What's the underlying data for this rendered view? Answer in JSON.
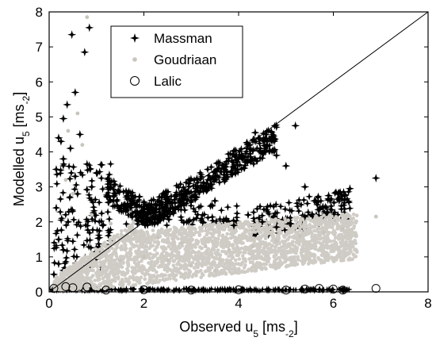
{
  "chart_data": {
    "type": "scatter",
    "title": "",
    "xlabel": {
      "main": "Observed u",
      "sub": "5",
      "unit_open": " [ms",
      "unit_sub": "-2",
      "unit_close": "]"
    },
    "ylabel": {
      "main": "Modelled u",
      "sub": "5",
      "unit_open": " [ms",
      "unit_sub": "-2",
      "unit_close": "]"
    },
    "xlim": [
      0,
      8
    ],
    "ylim": [
      0,
      8
    ],
    "xticks": [
      "0",
      "2",
      "4",
      "6",
      "8"
    ],
    "yticks": [
      "0",
      "1",
      "2",
      "3",
      "4",
      "5",
      "6",
      "7",
      "8"
    ],
    "grid": false,
    "legend_position": "top-left",
    "reference_line": {
      "x": [
        0,
        8
      ],
      "y": [
        0,
        8
      ]
    },
    "series": [
      {
        "name": "Massman",
        "marker": "star",
        "color": "#000000",
        "points": [
          [
            0.48,
            7.35
          ],
          [
            0.75,
            6.85
          ],
          [
            0.85,
            7.55
          ],
          [
            0.55,
            5.7
          ],
          [
            0.38,
            5.35
          ],
          [
            0.3,
            4.95
          ],
          [
            0.2,
            4.4
          ],
          [
            0.25,
            4.3
          ],
          [
            0.45,
            4.1
          ],
          [
            0.65,
            4.5
          ],
          [
            0.15,
            3.5
          ],
          [
            0.3,
            3.8
          ],
          [
            0.55,
            3.3
          ],
          [
            0.8,
            3.65
          ],
          [
            1.0,
            3.4
          ],
          [
            1.3,
            3.0
          ],
          [
            1.6,
            2.5
          ],
          [
            1.9,
            2.2
          ],
          [
            2.2,
            2.3
          ],
          [
            2.5,
            2.55
          ],
          [
            2.8,
            2.75
          ],
          [
            3.1,
            2.95
          ],
          [
            3.4,
            3.2
          ],
          [
            3.7,
            3.5
          ],
          [
            4.0,
            3.8
          ],
          [
            4.2,
            4.2
          ],
          [
            4.35,
            4.55
          ],
          [
            4.6,
            4.3
          ],
          [
            4.8,
            3.9
          ],
          [
            5.0,
            3.6
          ],
          [
            5.2,
            4.75
          ],
          [
            5.4,
            3.0
          ],
          [
            5.6,
            2.6
          ],
          [
            5.9,
            2.75
          ],
          [
            6.1,
            2.8
          ],
          [
            6.35,
            2.95
          ],
          [
            6.9,
            3.25
          ],
          [
            4.5,
            2.0
          ],
          [
            4.8,
            1.85
          ],
          [
            5.1,
            1.95
          ],
          [
            5.4,
            2.15
          ],
          [
            5.7,
            2.35
          ],
          [
            4.2,
            2.2
          ],
          [
            3.9,
            1.9
          ],
          [
            3.5,
            2.6
          ],
          [
            0.2,
            1.5
          ],
          [
            0.3,
            1.2
          ],
          [
            0.4,
            2.0
          ],
          [
            0.2,
            0.8
          ],
          [
            0.1,
            0.5
          ],
          [
            0.15,
            2.4
          ],
          [
            0.6,
            2.8
          ],
          [
            0.9,
            3.0
          ]
        ]
      },
      {
        "name": "Goudriaan",
        "marker": "dot",
        "color": "#c8c4be",
        "points": [
          [
            0.8,
            7.85
          ],
          [
            0.6,
            5.1
          ],
          [
            0.4,
            4.6
          ],
          [
            0.7,
            4.2
          ],
          [
            0.35,
            3.2
          ],
          [
            0.5,
            2.8
          ],
          [
            0.9,
            2.2
          ],
          [
            1.3,
            1.95
          ],
          [
            1.8,
            1.7
          ],
          [
            2.3,
            1.55
          ],
          [
            2.8,
            1.4
          ],
          [
            3.3,
            1.3
          ],
          [
            3.8,
            1.2
          ],
          [
            4.3,
            1.3
          ],
          [
            4.8,
            1.45
          ],
          [
            5.3,
            1.6
          ],
          [
            5.8,
            1.7
          ],
          [
            6.2,
            1.8
          ],
          [
            6.9,
            2.15
          ],
          [
            1.5,
            0.9
          ],
          [
            2.0,
            1.0
          ],
          [
            2.5,
            0.9
          ],
          [
            3.0,
            0.75
          ],
          [
            3.5,
            0.6
          ]
        ]
      },
      {
        "name": "Lalic",
        "marker": "circle",
        "color": "#000000",
        "points": [
          [
            0.1,
            0.1
          ],
          [
            0.35,
            0.15
          ],
          [
            0.5,
            0.12
          ],
          [
            0.8,
            0.14
          ],
          [
            1.2,
            0.05
          ],
          [
            2.0,
            0.06
          ],
          [
            3.0,
            0.05
          ],
          [
            4.0,
            0.06
          ],
          [
            5.0,
            0.05
          ],
          [
            5.4,
            0.08
          ],
          [
            5.7,
            0.1
          ],
          [
            6.0,
            0.08
          ],
          [
            6.2,
            0.05
          ],
          [
            6.9,
            0.1
          ]
        ]
      }
    ]
  }
}
